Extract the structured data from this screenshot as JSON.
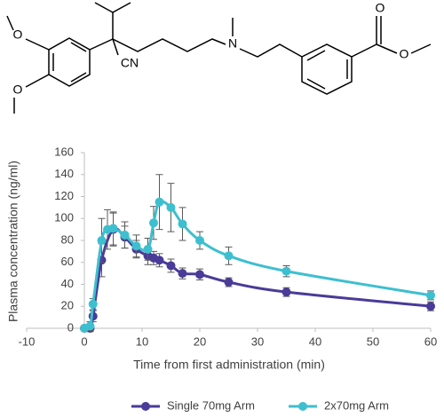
{
  "structure": {
    "atoms": [
      "O",
      "O",
      "CN",
      "N",
      "O",
      "O"
    ]
  },
  "chart_data": {
    "type": "line",
    "ylabel": "Plasma concentration (ng/ml)",
    "xlabel": "Time from first administration (min)",
    "xlim": [
      -10,
      60
    ],
    "xticks": [
      -10,
      0,
      10,
      20,
      30,
      40,
      50,
      60
    ],
    "ylim": [
      0,
      160
    ],
    "yticks": [
      0,
      20,
      40,
      60,
      80,
      100,
      120,
      140,
      160
    ],
    "grid": false,
    "legend": "bottom",
    "series": [
      {
        "name": "Single 70mg Arm",
        "color": "#4a3b98",
        "x": [
          0,
          1,
          1.5,
          3,
          5,
          7,
          9,
          11,
          12,
          13,
          15,
          17,
          20,
          25,
          35,
          60
        ],
        "values": [
          0,
          0,
          11,
          62,
          90,
          83,
          72,
          66,
          64,
          62,
          57,
          50,
          49,
          42,
          33,
          20
        ],
        "errors": [
          2,
          3,
          5,
          15,
          15,
          10,
          8,
          8,
          6,
          6,
          6,
          5,
          5,
          4,
          4,
          4
        ]
      },
      {
        "name": "2x70mg Arm",
        "color": "#3dbfcf",
        "x": [
          0,
          1,
          1.5,
          3,
          4,
          5,
          7,
          9,
          11,
          12,
          13,
          15,
          17,
          20,
          25,
          35,
          60
        ],
        "values": [
          0,
          2,
          22,
          80,
          90,
          91,
          85,
          75,
          72,
          96,
          115,
          110,
          95,
          80,
          66,
          52,
          30
        ],
        "errors": [
          2,
          4,
          5,
          20,
          18,
          15,
          12,
          10,
          10,
          15,
          25,
          22,
          15,
          8,
          8,
          5,
          4
        ]
      }
    ]
  }
}
